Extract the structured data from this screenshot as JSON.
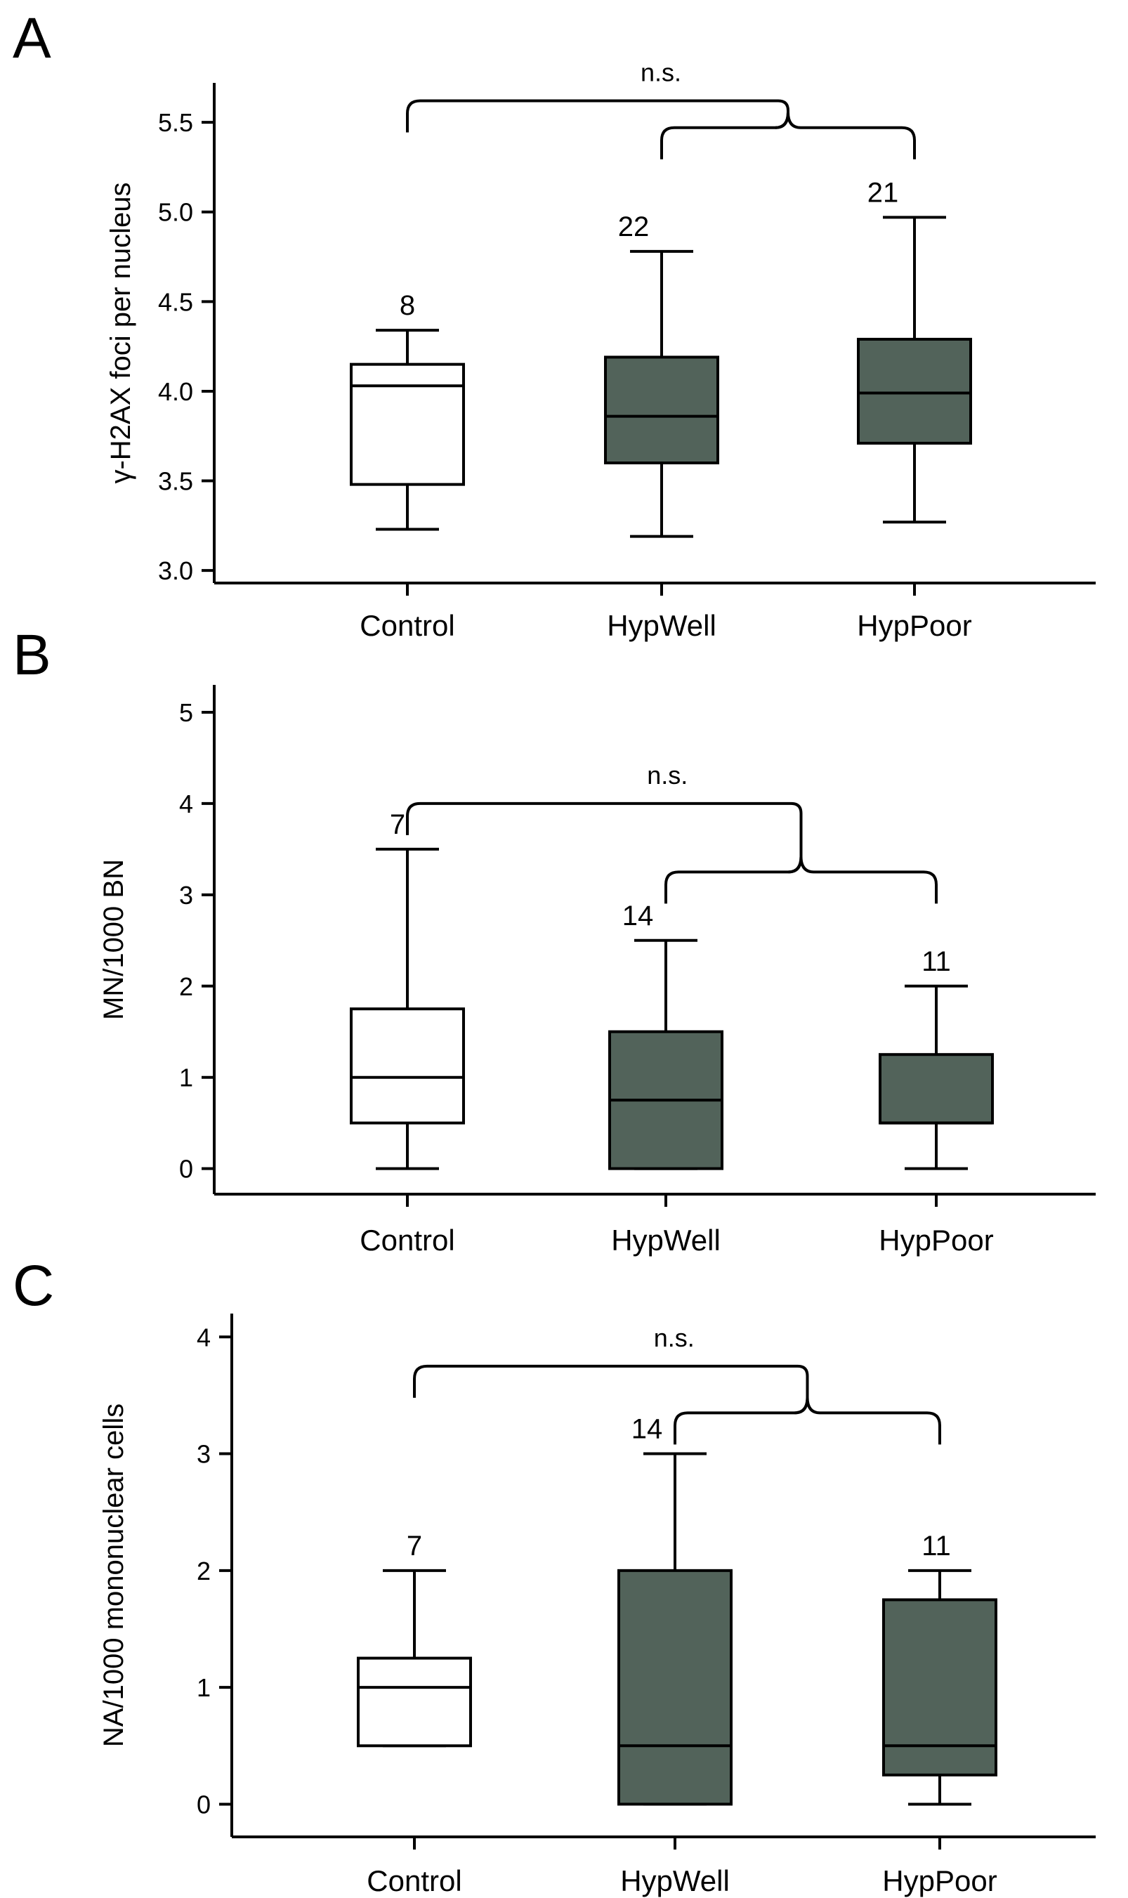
{
  "chart_data": [
    {
      "type": "boxplot",
      "panel": "A",
      "ylabel": "γ-H2AX foci per nucleus",
      "ylim": [
        2.93,
        5.72
      ],
      "yticks": [
        3.0,
        3.5,
        4.0,
        4.5,
        5.0,
        5.5
      ],
      "ytick_labels": [
        "3.0",
        "3.5",
        "4.0",
        "4.5",
        "5.0",
        "5.5"
      ],
      "categories": [
        "Control",
        "HypWell",
        "HypPoor"
      ],
      "boxes": [
        {
          "name": "Control",
          "min": 3.23,
          "q1": 3.48,
          "median": 4.03,
          "q3": 4.15,
          "max": 4.34,
          "n": "8",
          "color": "#ffffff"
        },
        {
          "name": "HypWell",
          "min": 3.19,
          "q1": 3.6,
          "median": 3.86,
          "q3": 4.19,
          "max": 4.78,
          "n": "22",
          "color": "#52635a"
        },
        {
          "name": "HypPoor",
          "min": 3.27,
          "q1": 3.71,
          "median": 3.99,
          "q3": 4.29,
          "max": 4.97,
          "n": "21",
          "color": "#52635a"
        }
      ],
      "bracket": {
        "label": "n.s.",
        "outer_level": 5.62,
        "inner_level": 5.47
      }
    },
    {
      "type": "boxplot",
      "panel": "B",
      "ylabel": "MN/1000 BN",
      "ylim": [
        -0.28,
        5.3
      ],
      "yticks": [
        0,
        1,
        2,
        3,
        4,
        5
      ],
      "ytick_labels": [
        "0",
        "1",
        "2",
        "3",
        "4",
        "5"
      ],
      "categories": [
        "Control",
        "HypWell",
        "HypPoor"
      ],
      "boxes": [
        {
          "name": "Control",
          "min": 0,
          "q1": 0.5,
          "median": 1.0,
          "q3": 1.75,
          "max": 3.5,
          "n": "7",
          "color": "#ffffff"
        },
        {
          "name": "HypWell",
          "min": 0,
          "q1": 0,
          "median": 0.75,
          "q3": 1.5,
          "max": 2.5,
          "n": "14",
          "color": "#52635a"
        },
        {
          "name": "HypPoor",
          "min": 0,
          "q1": 0.5,
          "median": 0.5,
          "q3": 1.25,
          "max": 2.0,
          "n": "11",
          "color": "#52635a"
        }
      ],
      "bracket": {
        "label": "n.s.",
        "outer_level": 4.0,
        "inner_level": 3.25
      }
    },
    {
      "type": "boxplot",
      "panel": "C",
      "ylabel": "NA/1000 mononuclear  cells",
      "ylim": [
        -0.28,
        4.2
      ],
      "yticks": [
        0,
        1,
        2,
        3,
        4
      ],
      "ytick_labels": [
        "0",
        "1",
        "2",
        "3",
        "4"
      ],
      "categories": [
        "Control",
        "HypWell",
        "HypPoor"
      ],
      "boxes": [
        {
          "name": "Control",
          "min": 0.5,
          "q1": 0.5,
          "median": 1.0,
          "q3": 1.25,
          "max": 2.0,
          "n": "7",
          "color": "#ffffff"
        },
        {
          "name": "HypWell",
          "min": 0,
          "q1": 0,
          "median": 0.5,
          "q3": 2.0,
          "max": 3.0,
          "n": "14",
          "color": "#52635a"
        },
        {
          "name": "HypPoor",
          "min": 0,
          "q1": 0.25,
          "median": 0.5,
          "q3": 1.75,
          "max": 2.0,
          "n": "11",
          "color": "#52635a"
        }
      ],
      "bracket": {
        "label": "n.s.",
        "outer_level": 3.75,
        "inner_level": 3.35
      }
    }
  ]
}
